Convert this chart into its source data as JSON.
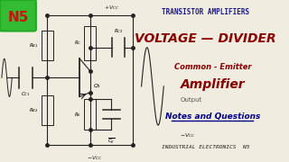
{
  "bg_color": "#f0ece0",
  "title_text": "TRANSISTOR AMPLIFIERS",
  "title_color": "#1a1a8c",
  "vd_text": "VOLTAGE — DIVIDER",
  "vd_color": "#8b0000",
  "ce_text": "Common - Emitter",
  "ce_color": "#8b0000",
  "amp_text": "Amplifier",
  "amp_color": "#8b0000",
  "output_text": "Output",
  "output_color": "#555555",
  "notes_text": "Notes and Questions",
  "notes_color": "#00008b",
  "industrial_text": "INDUSTRIAL ELECTRONICS  N5",
  "industrial_color": "#222222",
  "n5_label": "N5",
  "n5_bg": "#33bb33",
  "n5_border": "#22aa22",
  "lc": "#222222",
  "vcc_text": "+V CC",
  "mvcc_text": "−V CC"
}
